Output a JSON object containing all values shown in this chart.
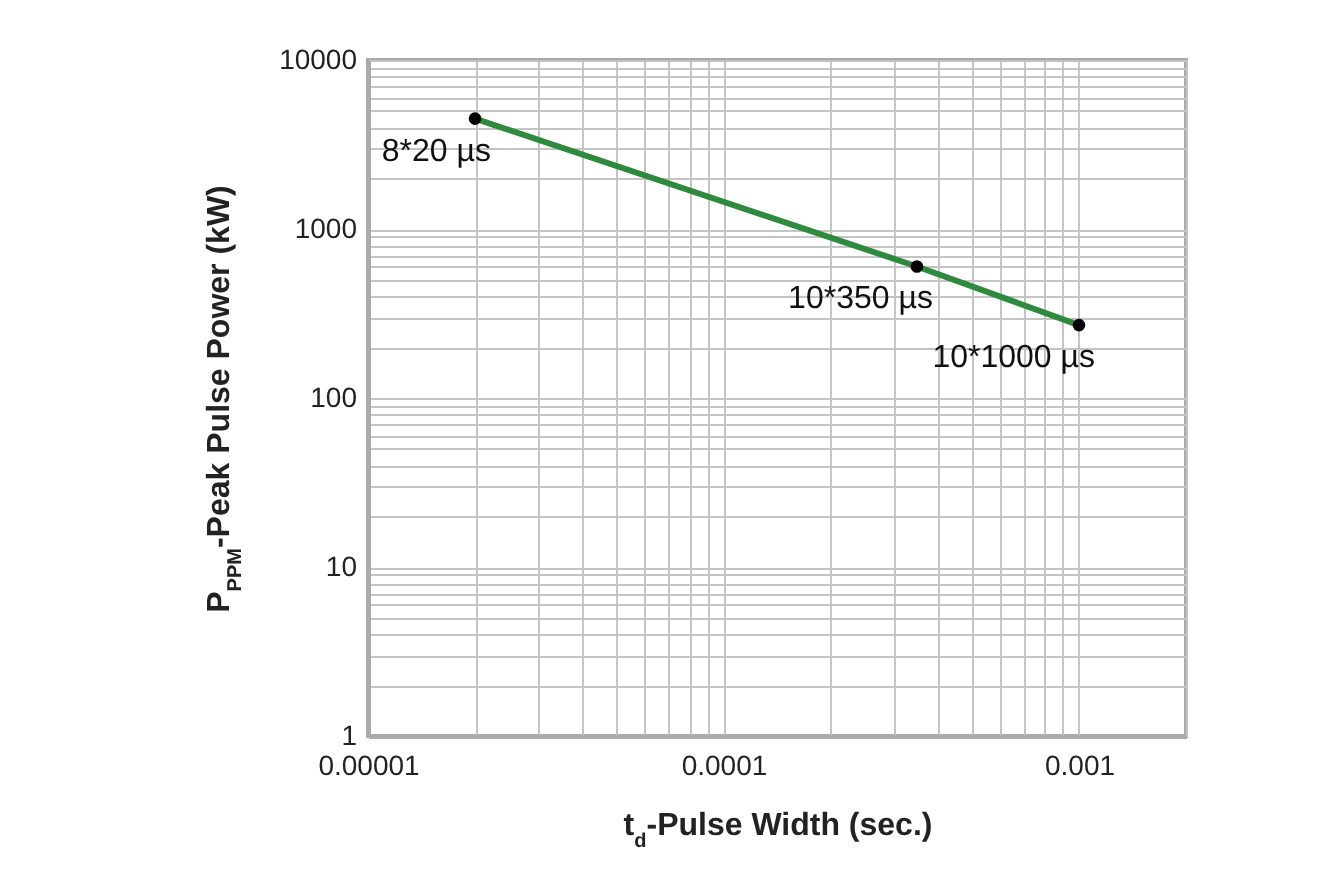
{
  "chart_data": {
    "type": "line",
    "xlabel": "t$_{d}$-Pulse Width (sec.)",
    "ylabel": "P$_{PPM}$-Peak Pulse Power (kW)",
    "x": [
      2e-05,
      0.00035,
      0.001
    ],
    "series": [
      {
        "color": "#2e8b3e",
        "values": [
          4500,
          600,
          270
        ]
      }
    ],
    "marker": "circle",
    "log": "xy",
    "grid": true,
    "xlim": [
      1e-05,
      0.002
    ],
    "ylim": [
      1,
      10000
    ],
    "xticks": [
      {
        "value": 1e-05,
        "label": "0.00001"
      },
      {
        "value": 2e-05,
        "label": null
      },
      {
        "value": 3e-05,
        "label": null
      },
      {
        "value": 4e-05,
        "label": null
      },
      {
        "value": 5e-05,
        "label": null
      },
      {
        "value": 6e-05,
        "label": null
      },
      {
        "value": 7e-05,
        "label": null
      },
      {
        "value": 8e-05,
        "label": null
      },
      {
        "value": 9e-05,
        "label": null
      },
      0.0001,
      {
        "value": 0.0002,
        "label": null
      },
      {
        "value": 0.0003,
        "label": null
      },
      {
        "value": 0.0004,
        "label": null
      },
      {
        "value": 0.0005,
        "label": null
      },
      {
        "value": 0.0006,
        "label": null
      },
      {
        "value": 0.0007,
        "label": null
      },
      {
        "value": 0.0008,
        "label": null
      },
      {
        "value": 0.0009,
        "label": null
      },
      0.001,
      {
        "value": 0.002,
        "label": null
      }
    ],
    "yticks": [
      1,
      {
        "value": 2,
        "label": null
      },
      {
        "value": 3,
        "label": null
      },
      {
        "value": 4,
        "label": null
      },
      {
        "value": 5,
        "label": null
      },
      {
        "value": 6,
        "label": null
      },
      {
        "value": 7,
        "label": null
      },
      {
        "value": 8,
        "label": null
      },
      {
        "value": 9,
        "label": null
      },
      10,
      {
        "value": 20,
        "label": null
      },
      {
        "value": 30,
        "label": null
      },
      {
        "value": 40,
        "label": null
      },
      {
        "value": 50,
        "label": null
      },
      {
        "value": 60,
        "label": null
      },
      {
        "value": 70,
        "label": null
      },
      {
        "value": 80,
        "label": null
      },
      {
        "value": 90,
        "label": null
      },
      100,
      {
        "value": 200,
        "label": null
      },
      {
        "value": 300,
        "label": null
      },
      {
        "value": 400,
        "label": null
      },
      {
        "value": 500,
        "label": null
      },
      {
        "value": 600,
        "label": null
      },
      {
        "value": 700,
        "label": null
      },
      {
        "value": 800,
        "label": null
      },
      {
        "value": 900,
        "label": null
      },
      1000,
      {
        "value": 2000,
        "label": null
      },
      {
        "value": 3000,
        "label": null
      },
      {
        "value": 4000,
        "label": null
      },
      {
        "value": 5000,
        "label": null
      },
      {
        "value": 6000,
        "label": null
      },
      {
        "value": 7000,
        "label": null
      },
      {
        "value": 8000,
        "label": null
      },
      {
        "value": 9000,
        "label": null
      },
      10000
    ],
    "annotations": [
      {
        "text": "8*20 µs",
        "x": 2e-05,
        "y": 4500
      },
      {
        "text": "10*350 µs",
        "x": 0.00035,
        "y": 600
      },
      {
        "text": "10*1000 µs",
        "x": 0.001,
        "y": 270
      }
    ]
  }
}
